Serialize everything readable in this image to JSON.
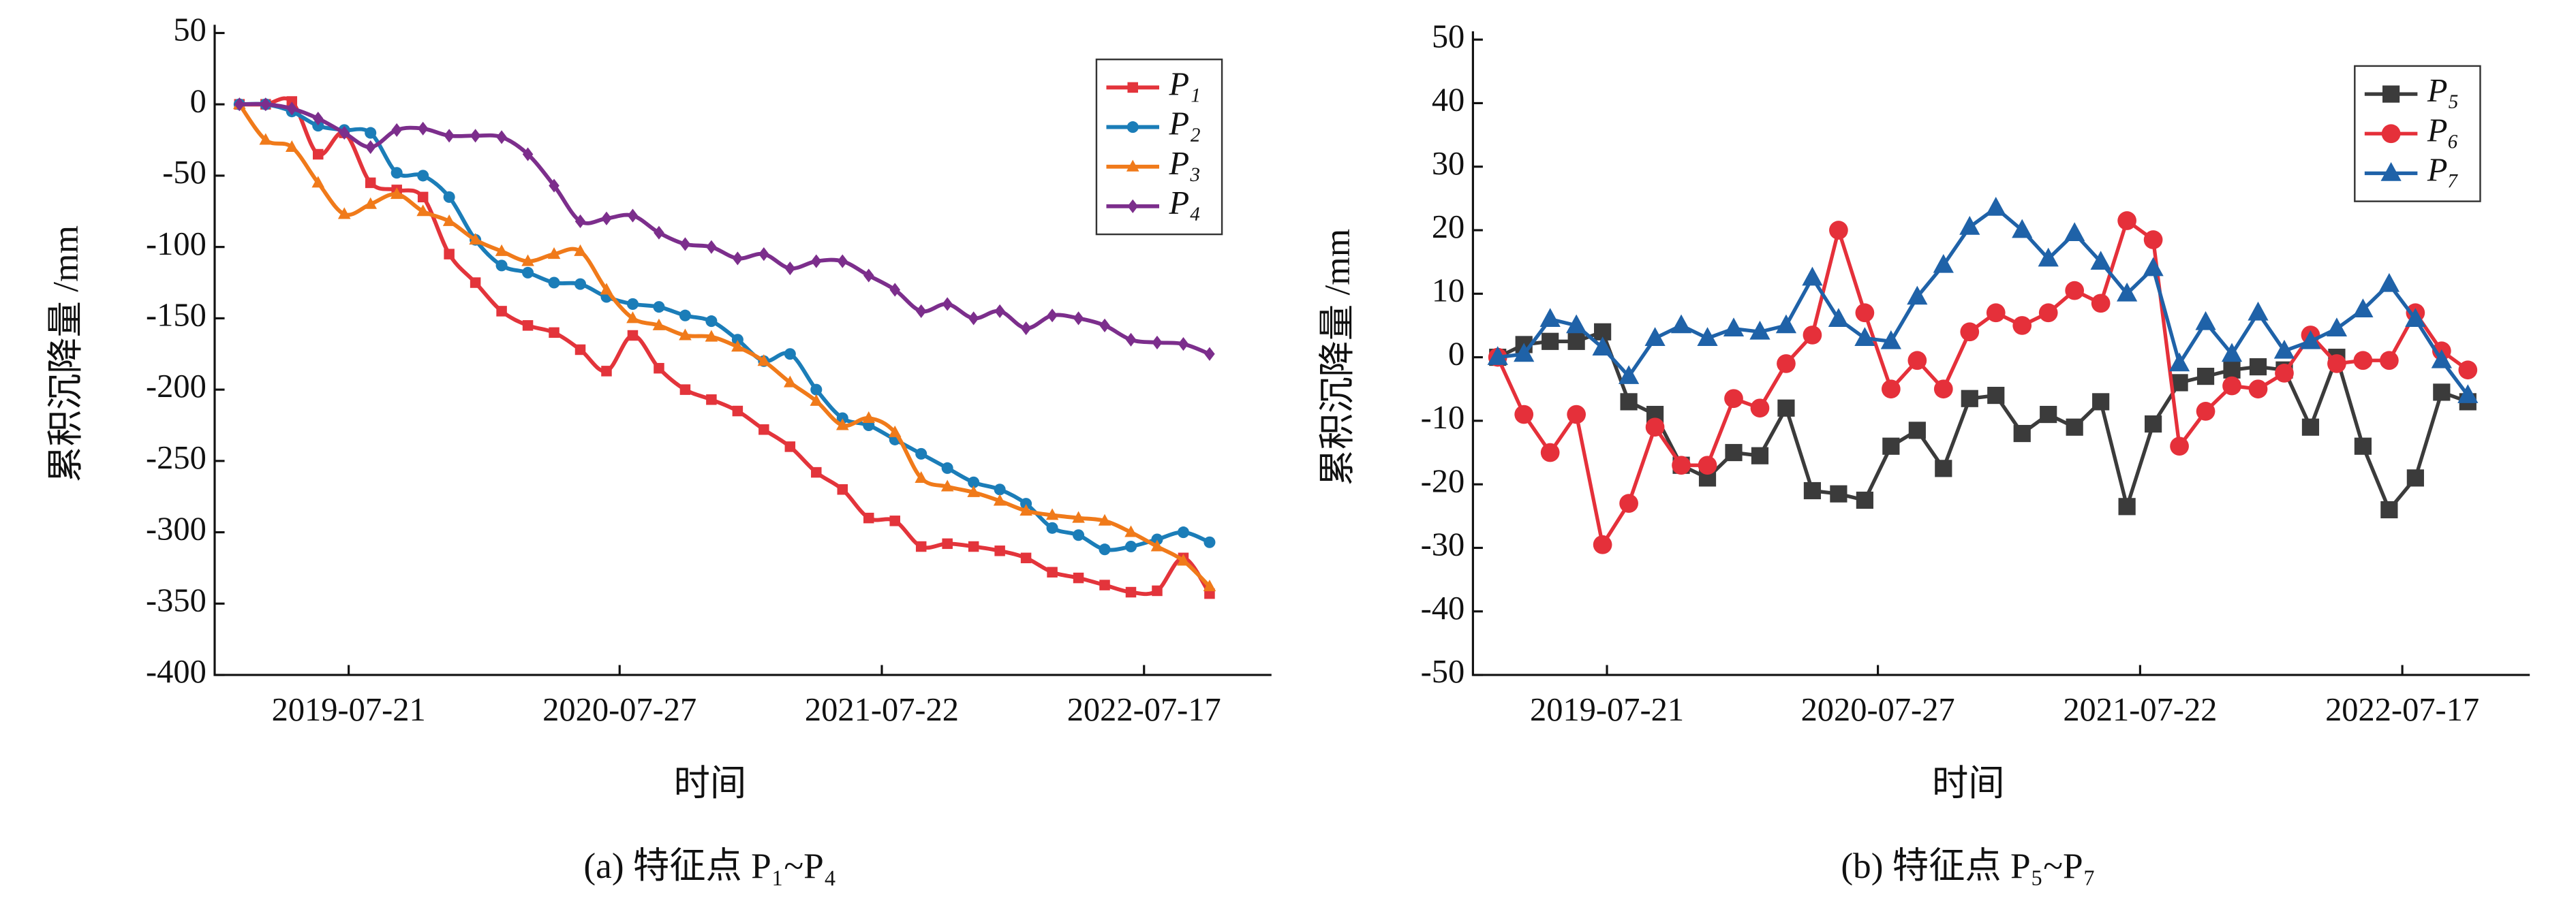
{
  "chart_data": [
    {
      "type": "line",
      "smooth": true,
      "caption": "(a) 特征点 P₁~P₄",
      "ylabel": "累积沉降量 /mm",
      "xlabel": "时间",
      "xlim": [
        "2019-01-18",
        "2023-01-08"
      ],
      "xticks": [
        "2019-07-21",
        "2020-07-27",
        "2021-07-22",
        "2022-07-17"
      ],
      "ylim": [
        -400,
        50
      ],
      "yticks": [
        -400,
        -350,
        -300,
        -250,
        -200,
        -150,
        -100,
        -50,
        0,
        50
      ],
      "grid": false,
      "legend": "upper right",
      "x": [
        "2019-02-21",
        "2019-03-29",
        "2019-05-04",
        "2019-06-09",
        "2019-07-15",
        "2019-08-20",
        "2019-09-25",
        "2019-10-31",
        "2019-12-06",
        "2020-01-11",
        "2020-02-16",
        "2020-03-23",
        "2020-04-28",
        "2020-06-03",
        "2020-07-09",
        "2020-08-14",
        "2020-09-19",
        "2020-10-25",
        "2020-11-30",
        "2021-01-05",
        "2021-02-10",
        "2021-03-18",
        "2021-04-23",
        "2021-05-29",
        "2021-07-04",
        "2021-08-09",
        "2021-09-14",
        "2021-10-20",
        "2021-11-25",
        "2021-12-31",
        "2022-02-05",
        "2022-03-13",
        "2022-04-18",
        "2022-05-24",
        "2022-06-29",
        "2022-08-04",
        "2022-09-09",
        "2022-10-15"
      ],
      "series": [
        {
          "name": "P₁",
          "color": "#e3343b",
          "marker": "square",
          "values": [
            0,
            0,
            2,
            -35,
            -20,
            -55,
            -60,
            -65,
            -105,
            -125,
            -145,
            -155,
            -160,
            -172,
            -187,
            -162,
            -185,
            -200,
            -207,
            -215,
            -228,
            -240,
            -258,
            -270,
            -290,
            -292,
            -310,
            -308,
            -310,
            -313,
            -318,
            -328,
            -332,
            -337,
            -342,
            -341,
            -318,
            -343
          ]
        },
        {
          "name": "P₂",
          "color": "#1b7db8",
          "marker": "circle",
          "values": [
            0,
            0,
            -5,
            -15,
            -18,
            -20,
            -48,
            -50,
            -65,
            -95,
            -113,
            -118,
            -125,
            -126,
            -135,
            -140,
            -142,
            -148,
            -152,
            -165,
            -180,
            -175,
            -200,
            -220,
            -225,
            -235,
            -245,
            -255,
            -265,
            -270,
            -280,
            -297,
            -302,
            -312,
            -310,
            -305,
            -300,
            -307
          ]
        },
        {
          "name": "P₃",
          "color": "#f07a1a",
          "marker": "triangle",
          "values": [
            0,
            -25,
            -30,
            -55,
            -77,
            -70,
            -63,
            -75,
            -82,
            -95,
            -103,
            -110,
            -105,
            -103,
            -130,
            -150,
            -155,
            -162,
            -163,
            -170,
            -180,
            -195,
            -208,
            -225,
            -220,
            -230,
            -262,
            -268,
            -272,
            -278,
            -285,
            -288,
            -290,
            -292,
            -300,
            -310,
            -320,
            -338
          ]
        },
        {
          "name": "P₄",
          "color": "#7c2e8c",
          "marker": "diamond",
          "values": [
            0,
            0,
            -3,
            -10,
            -20,
            -30,
            -18,
            -17,
            -22,
            -22,
            -23,
            -35,
            -57,
            -82,
            -80,
            -78,
            -90,
            -98,
            -100,
            -108,
            -105,
            -115,
            -110,
            -110,
            -120,
            -130,
            -145,
            -140,
            -150,
            -145,
            -157,
            -148,
            -150,
            -155,
            -165,
            -167,
            -168,
            -175
          ]
        }
      ]
    },
    {
      "type": "line",
      "smooth": false,
      "caption": "(b) 特征点 P₅~P₇",
      "ylabel": "累积沉降量 /mm",
      "xlabel": "时间",
      "xlim": [
        "2019-01-18",
        "2023-01-08"
      ],
      "xticks": [
        "2019-07-21",
        "2020-07-27",
        "2021-07-22",
        "2022-07-17"
      ],
      "ylim": [
        -50,
        50
      ],
      "yticks": [
        -50,
        -40,
        -30,
        -20,
        -10,
        0,
        10,
        20,
        30,
        40,
        50
      ],
      "grid": false,
      "legend": "upper right",
      "x": [
        "2019-02-21",
        "2019-03-29",
        "2019-05-04",
        "2019-06-09",
        "2019-07-15",
        "2019-08-20",
        "2019-09-25",
        "2019-10-31",
        "2019-12-06",
        "2020-01-11",
        "2020-02-16",
        "2020-03-23",
        "2020-04-28",
        "2020-06-03",
        "2020-07-09",
        "2020-08-14",
        "2020-09-19",
        "2020-10-25",
        "2020-11-30",
        "2021-01-05",
        "2021-02-10",
        "2021-03-18",
        "2021-04-23",
        "2021-05-29",
        "2021-07-04",
        "2021-08-09",
        "2021-09-14",
        "2021-10-20",
        "2021-11-25",
        "2021-12-31",
        "2022-02-05",
        "2022-03-13",
        "2022-04-18",
        "2022-05-24",
        "2022-06-29",
        "2022-08-04",
        "2022-09-09",
        "2022-10-15"
      ],
      "series": [
        {
          "name": "P₅",
          "color": "#3b3b3b",
          "marker": "square",
          "values": [
            0,
            2,
            2.5,
            2.5,
            4,
            -7,
            -9,
            -17,
            -19,
            -15,
            -15.5,
            -8,
            -21,
            -21.5,
            -22.5,
            -14,
            -11.5,
            -17.5,
            -6.5,
            -6,
            -12,
            -9,
            -11,
            -7,
            -23.5,
            -10.5,
            -4,
            -3,
            -2,
            -1.5,
            -2,
            -11,
            0,
            -14,
            -24,
            -19,
            -5.5,
            -7
          ]
        },
        {
          "name": "P₆",
          "color": "#e5303a",
          "marker": "circle",
          "values": [
            0,
            -9,
            -15,
            -9,
            -29.5,
            -23,
            -11,
            -17,
            -17,
            -6.5,
            -8,
            -1,
            3.5,
            20,
            7,
            -5,
            -0.5,
            -5,
            4,
            7,
            5,
            7,
            10.5,
            8.5,
            21.5,
            18.5,
            -14,
            -8.5,
            -4.5,
            -5,
            -2.5,
            3.5,
            -1,
            -0.5,
            -0.5,
            7,
            1,
            -2
          ]
        },
        {
          "name": "P₇",
          "color": "#1f62a8",
          "marker": "triangle",
          "values": [
            0,
            0.5,
            6,
            5,
            1.5,
            -3,
            3,
            5,
            3,
            4.5,
            4,
            5,
            12.5,
            6,
            3,
            2.5,
            9.5,
            14.5,
            20.5,
            23.5,
            20,
            15.5,
            19.5,
            15,
            10,
            14,
            -1,
            5.5,
            0.5,
            7,
            1,
            2.5,
            4.5,
            7.5,
            11.5,
            6,
            -0.5,
            -6
          ]
        }
      ]
    }
  ]
}
